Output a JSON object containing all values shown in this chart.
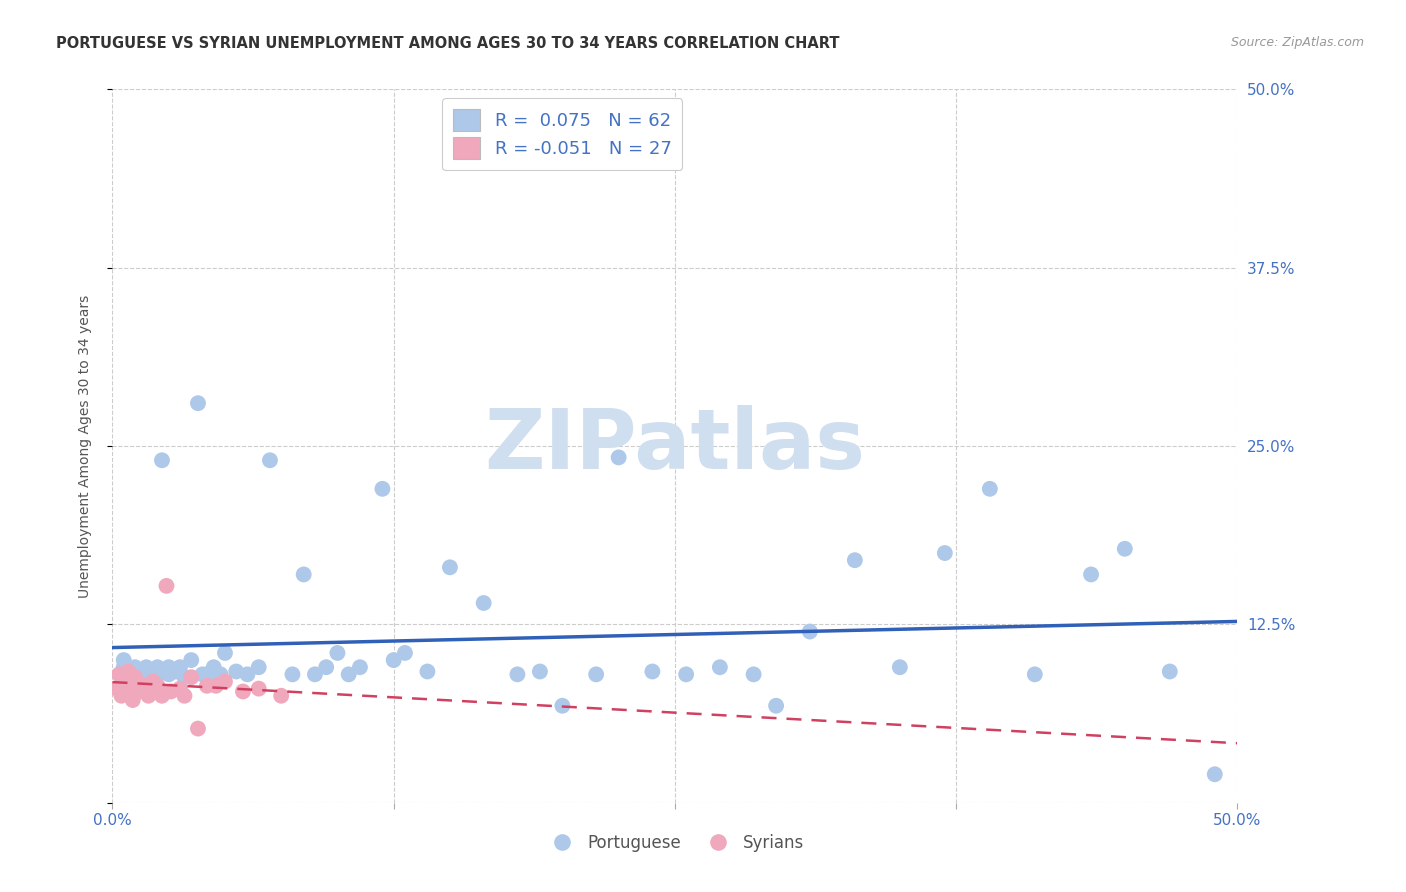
{
  "title": "PORTUGUESE VS SYRIAN UNEMPLOYMENT AMONG AGES 30 TO 34 YEARS CORRELATION CHART",
  "source": "Source: ZipAtlas.com",
  "ylabel": "Unemployment Among Ages 30 to 34 years",
  "xlim": [
    0.0,
    0.5
  ],
  "ylim": [
    0.0,
    0.5
  ],
  "portuguese_color": "#adc8e8",
  "portuguese_edge_color": "#adc8e8",
  "syrian_color": "#f0a8bc",
  "syrian_edge_color": "#f0a8bc",
  "portuguese_line_color": "#3060b8",
  "syrian_line_color": "#d04060",
  "background_color": "#ffffff",
  "grid_color": "#cccccc",
  "R_portuguese": 0.075,
  "N_portuguese": 62,
  "R_syrian": -0.051,
  "N_syrian": 27,
  "watermark_text": "ZIPatlas",
  "watermark_color": "#d0dff0",
  "title_fontsize": 10.5,
  "source_fontsize": 9,
  "axis_label_fontsize": 10,
  "tick_fontsize": 11,
  "legend_fontsize": 13,
  "portuguese_x": [
    0.005,
    0.005,
    0.008,
    0.01,
    0.01,
    0.01,
    0.012,
    0.015,
    0.015,
    0.018,
    0.02,
    0.02,
    0.022,
    0.025,
    0.025,
    0.028,
    0.03,
    0.032,
    0.035,
    0.038,
    0.04,
    0.042,
    0.045,
    0.048,
    0.05,
    0.055,
    0.06,
    0.065,
    0.07,
    0.08,
    0.085,
    0.09,
    0.095,
    0.1,
    0.105,
    0.11,
    0.12,
    0.125,
    0.13,
    0.14,
    0.15,
    0.165,
    0.18,
    0.19,
    0.2,
    0.215,
    0.225,
    0.24,
    0.255,
    0.27,
    0.285,
    0.295,
    0.31,
    0.33,
    0.35,
    0.37,
    0.39,
    0.41,
    0.435,
    0.45,
    0.47,
    0.49
  ],
  "portuguese_y": [
    0.095,
    0.1,
    0.09,
    0.09,
    0.095,
    0.092,
    0.088,
    0.095,
    0.09,
    0.092,
    0.09,
    0.095,
    0.24,
    0.09,
    0.095,
    0.092,
    0.095,
    0.088,
    0.1,
    0.28,
    0.09,
    0.09,
    0.095,
    0.09,
    0.105,
    0.092,
    0.09,
    0.095,
    0.24,
    0.09,
    0.16,
    0.09,
    0.095,
    0.105,
    0.09,
    0.095,
    0.22,
    0.1,
    0.105,
    0.092,
    0.165,
    0.14,
    0.09,
    0.092,
    0.068,
    0.09,
    0.242,
    0.092,
    0.09,
    0.095,
    0.09,
    0.068,
    0.12,
    0.17,
    0.095,
    0.175,
    0.22,
    0.09,
    0.16,
    0.178,
    0.092,
    0.02
  ],
  "syrian_x": [
    0.002,
    0.003,
    0.004,
    0.005,
    0.006,
    0.007,
    0.008,
    0.009,
    0.01,
    0.012,
    0.014,
    0.016,
    0.018,
    0.02,
    0.022,
    0.024,
    0.026,
    0.03,
    0.032,
    0.035,
    0.038,
    0.042,
    0.046,
    0.05,
    0.058,
    0.065,
    0.075
  ],
  "syrian_y": [
    0.08,
    0.09,
    0.075,
    0.085,
    0.078,
    0.092,
    0.082,
    0.072,
    0.088,
    0.078,
    0.082,
    0.075,
    0.085,
    0.082,
    0.075,
    0.152,
    0.078,
    0.08,
    0.075,
    0.088,
    0.052,
    0.082,
    0.082,
    0.085,
    0.078,
    0.08,
    0.075
  ]
}
